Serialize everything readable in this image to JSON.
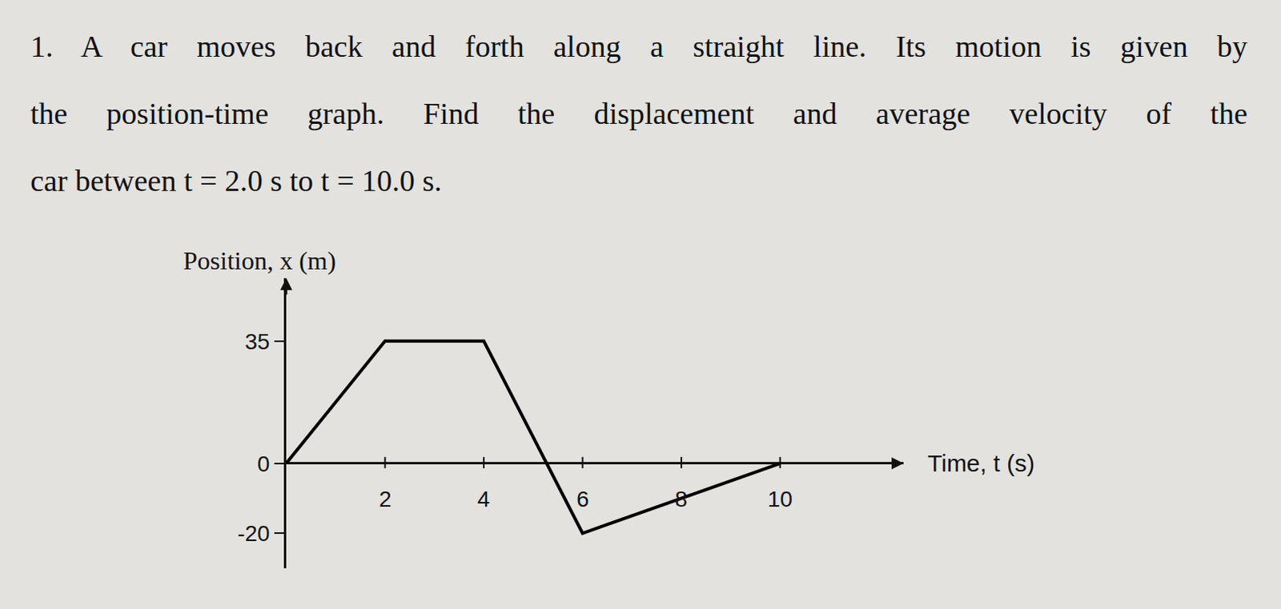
{
  "problem": {
    "lines": [
      "1. A car moves back and forth along a straight line. Its motion is given by",
      "the position-time graph. Find the displacement and average velocity of the",
      "car between t = 2.0 s to t = 10.0 s."
    ]
  },
  "chart_data": {
    "type": "line",
    "y_label": "Position, x (m)",
    "x_label": "Time, t (s)",
    "x": [
      0,
      2,
      4,
      6,
      10
    ],
    "values": [
      0,
      35,
      35,
      -20,
      0
    ],
    "color": "#000000",
    "xlim": [
      0,
      12.5
    ],
    "ylim": [
      -30,
      53
    ],
    "xticks": [
      2,
      4,
      6,
      8,
      10
    ],
    "yticks": [
      -20,
      0,
      35
    ],
    "grid": false
  }
}
